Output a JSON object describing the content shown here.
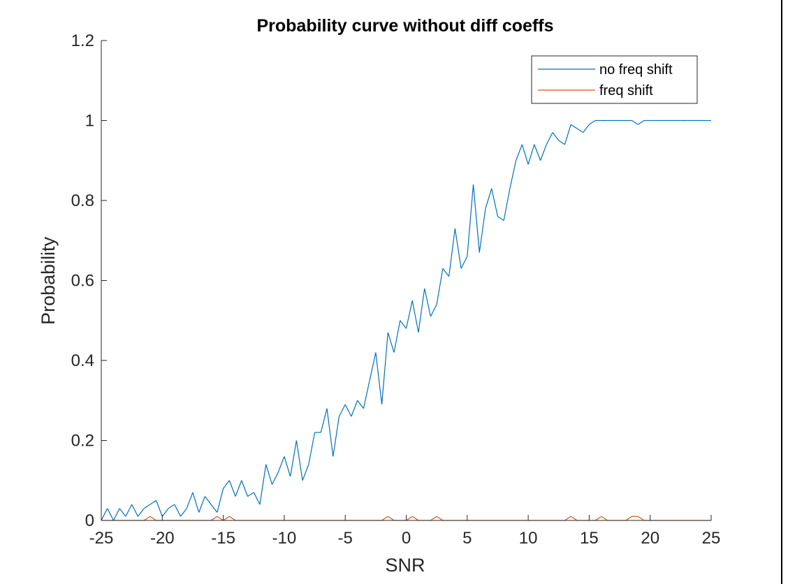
{
  "chart_data": {
    "type": "line",
    "title": "Probability curve without diff coeffs",
    "xlabel": "SNR",
    "ylabel": "Probability",
    "xlim": [
      -25,
      25
    ],
    "ylim": [
      0,
      1.2
    ],
    "x_ticks": [
      "-25",
      "-20",
      "-15",
      "-10",
      "-5",
      "0",
      "5",
      "10",
      "15",
      "20",
      "25"
    ],
    "y_ticks": [
      "0",
      "0.2",
      "0.4",
      "0.6",
      "0.8",
      "1",
      "1.2"
    ],
    "grid": false,
    "legend_position": "top-right",
    "x": [
      -25,
      -24.5,
      -24,
      -23.5,
      -23,
      -22.5,
      -22,
      -21.5,
      -21,
      -20.5,
      -20,
      -19.5,
      -19,
      -18.5,
      -18,
      -17.5,
      -17,
      -16.5,
      -16,
      -15.5,
      -15,
      -14.5,
      -14,
      -13.5,
      -13,
      -12.5,
      -12,
      -11.5,
      -11,
      -10.5,
      -10,
      -9.5,
      -9,
      -8.5,
      -8,
      -7.5,
      -7,
      -6.5,
      -6,
      -5.5,
      -5,
      -4.5,
      -4,
      -3.5,
      -3,
      -2.5,
      -2,
      -1.5,
      -1,
      -0.5,
      0,
      0.5,
      1,
      1.5,
      2,
      2.5,
      3,
      3.5,
      4,
      4.5,
      5,
      5.5,
      6,
      6.5,
      7,
      7.5,
      8,
      8.5,
      9,
      9.5,
      10,
      10.5,
      11,
      11.5,
      12,
      12.5,
      13,
      13.5,
      14,
      14.5,
      15,
      15.5,
      16,
      16.5,
      17,
      17.5,
      18,
      18.5,
      19,
      19.5,
      20,
      20.5,
      21,
      21.5,
      22,
      22.5,
      23,
      23.5,
      24,
      24.5,
      25
    ],
    "series": [
      {
        "name": "no freq shift",
        "color": "#0072BD",
        "values": [
          0,
          0.03,
          0,
          0.03,
          0.01,
          0.04,
          0.01,
          0.03,
          0.04,
          0.05,
          0.01,
          0.03,
          0.04,
          0.01,
          0.03,
          0.07,
          0.02,
          0.06,
          0.04,
          0.02,
          0.08,
          0.1,
          0.06,
          0.1,
          0.06,
          0.07,
          0.04,
          0.14,
          0.09,
          0.12,
          0.16,
          0.11,
          0.2,
          0.1,
          0.14,
          0.22,
          0.22,
          0.28,
          0.16,
          0.26,
          0.29,
          0.26,
          0.3,
          0.28,
          0.35,
          0.42,
          0.29,
          0.47,
          0.42,
          0.5,
          0.48,
          0.55,
          0.47,
          0.58,
          0.51,
          0.54,
          0.63,
          0.61,
          0.73,
          0.63,
          0.66,
          0.84,
          0.67,
          0.78,
          0.83,
          0.76,
          0.75,
          0.83,
          0.9,
          0.94,
          0.89,
          0.94,
          0.9,
          0.94,
          0.97,
          0.95,
          0.94,
          0.99,
          0.98,
          0.97,
          0.99,
          1,
          1,
          1,
          1,
          1,
          1,
          1,
          0.99,
          1,
          1,
          1,
          1,
          1,
          1,
          1,
          1,
          1,
          1,
          1,
          1
        ]
      },
      {
        "name": "freq shift",
        "color": "#D95319",
        "values": [
          0,
          0,
          0,
          0,
          0,
          0,
          0,
          0,
          0.01,
          0,
          0,
          0,
          0,
          0,
          0,
          0,
          0,
          0,
          0,
          0.01,
          0,
          0.01,
          0,
          0,
          0,
          0,
          0,
          0,
          0,
          0,
          0,
          0,
          0,
          0,
          0,
          0,
          0,
          0,
          0,
          0,
          0,
          0,
          0,
          0,
          0,
          0,
          0,
          0.01,
          0,
          0,
          0,
          0.01,
          0,
          0,
          0,
          0.01,
          0,
          0,
          0,
          0,
          0,
          0,
          0,
          0,
          0,
          0,
          0,
          0,
          0,
          0,
          0,
          0,
          0,
          0,
          0,
          0,
          0,
          0.01,
          0,
          0,
          0,
          0,
          0.01,
          0,
          0,
          0,
          0,
          0.01,
          0.01,
          0,
          0,
          0,
          0,
          0,
          0,
          0,
          0,
          0,
          0,
          0,
          0
        ]
      }
    ]
  }
}
